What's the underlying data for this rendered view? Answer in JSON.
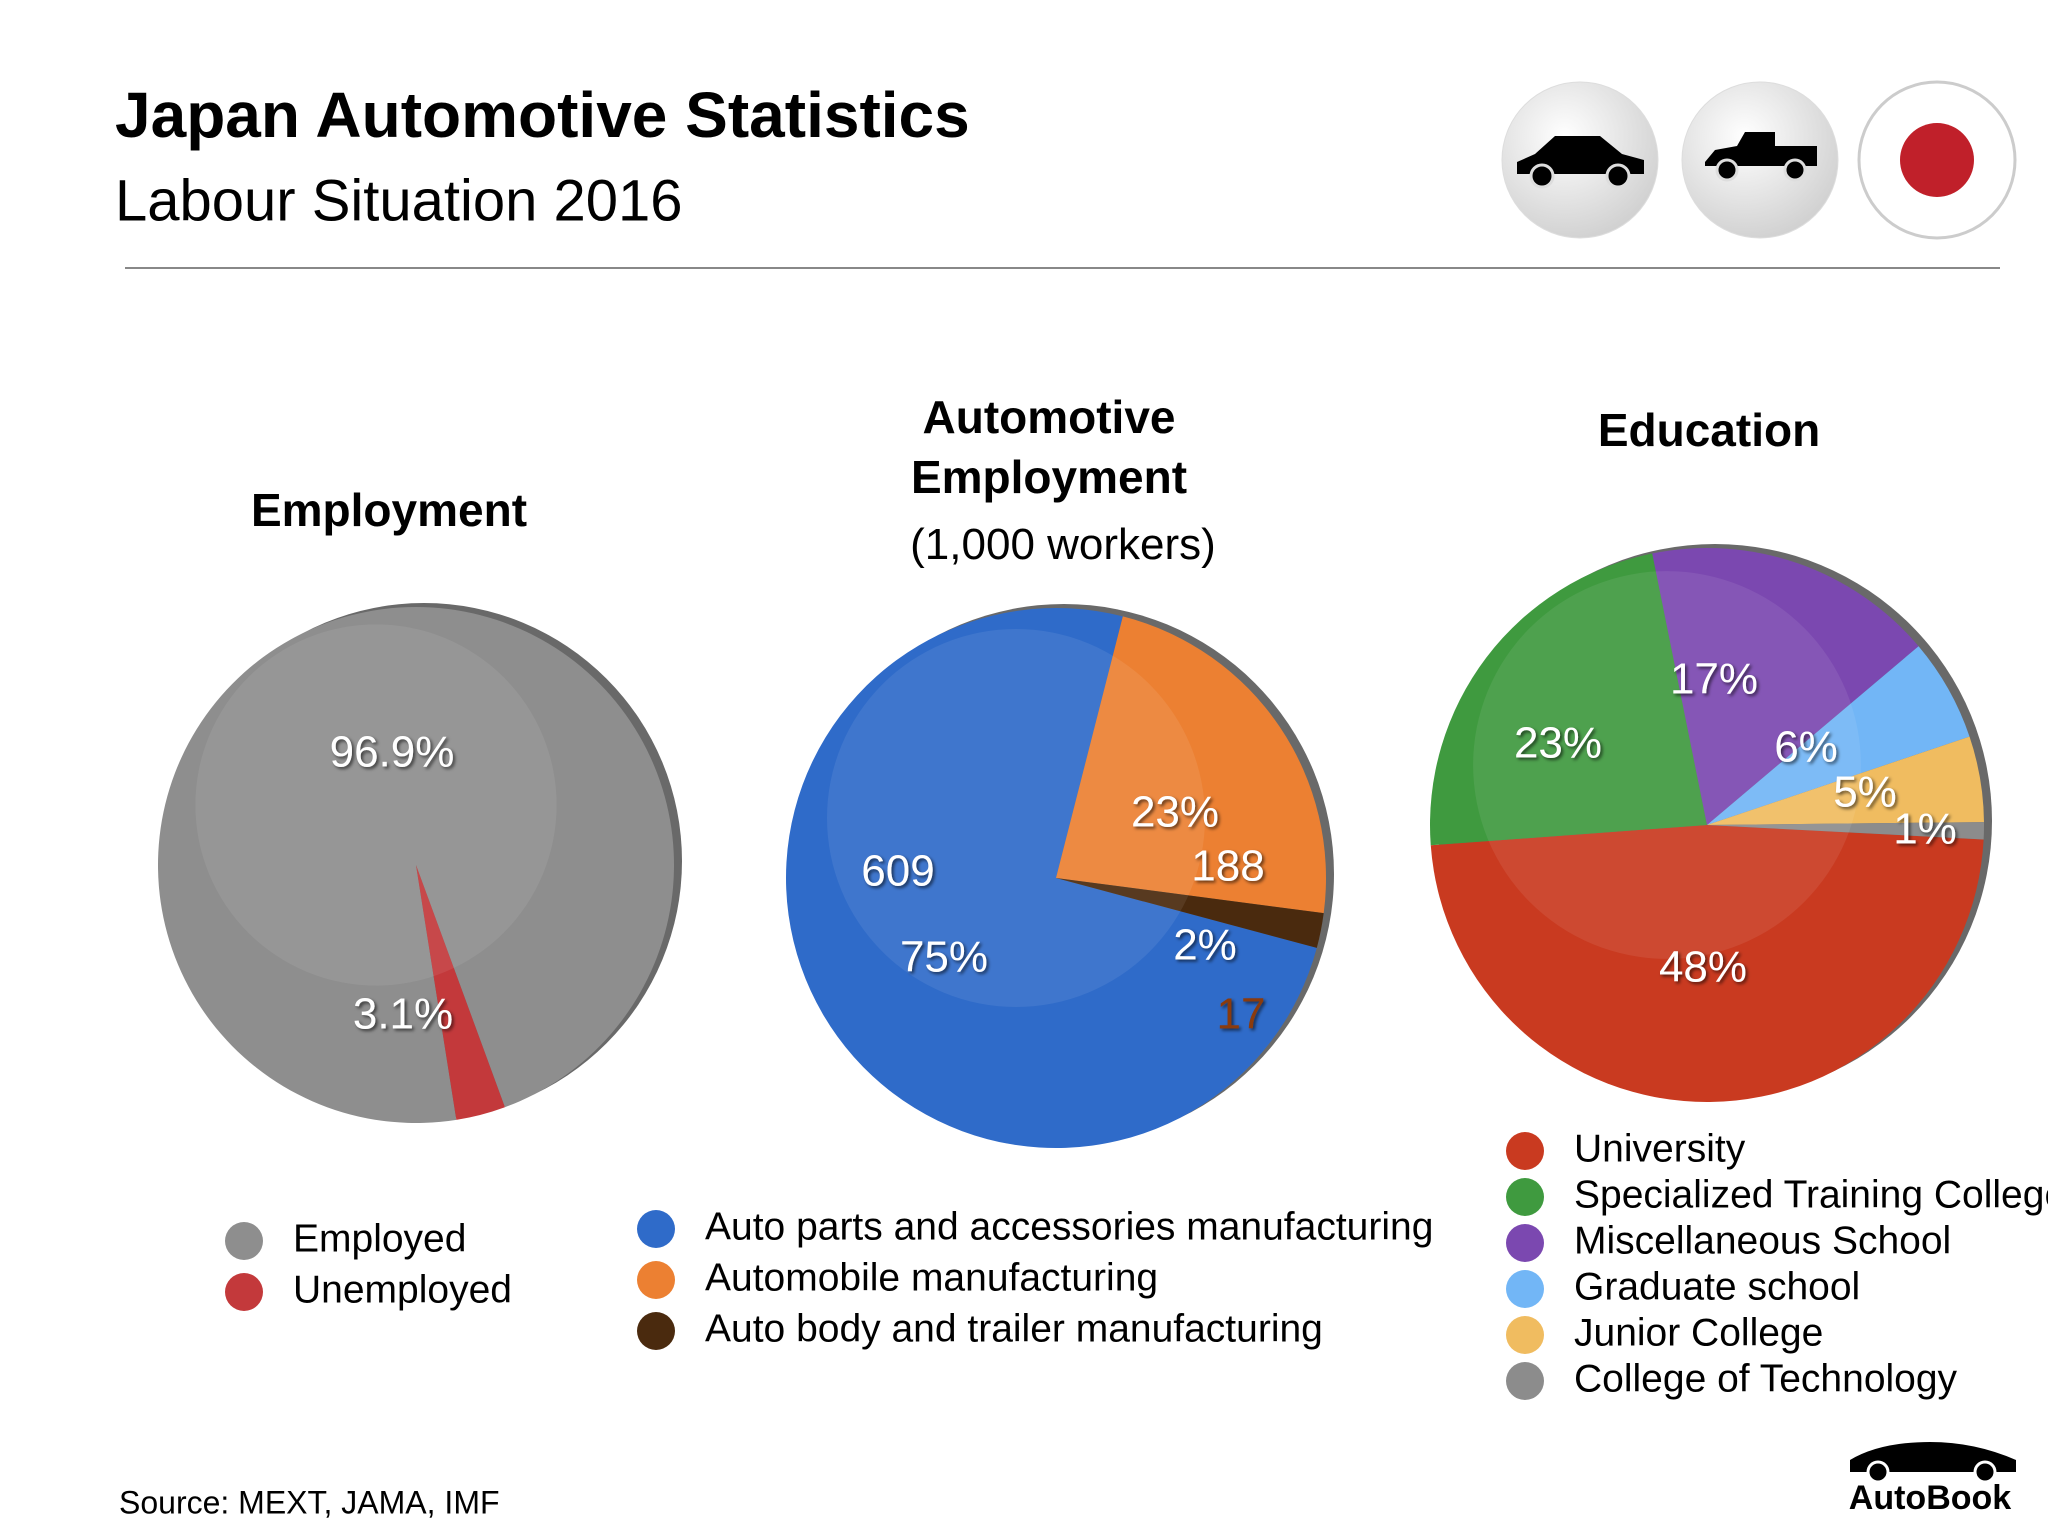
{
  "header": {
    "title": "Japan Automotive Statistics",
    "subtitle": "Labour Situation 2016"
  },
  "chart_data": [
    {
      "type": "pie",
      "title": "Employment",
      "categories": [
        "Employed",
        "Unemployed"
      ],
      "values": [
        96.9,
        3.1
      ],
      "value_labels": [
        "96.9%",
        "3.1%"
      ],
      "colors": [
        "#8e8e8e",
        "#c3393b"
      ]
    },
    {
      "type": "pie",
      "title": "Automotive Employment",
      "subtitle": "(1,000 workers)",
      "categories": [
        "Auto parts and accessories manufacturing",
        "Automobile manufacturing",
        "Auto body and trailer manufacturing"
      ],
      "values": [
        609,
        188,
        17
      ],
      "percent_labels": [
        "75%",
        "23%",
        "2%"
      ],
      "colors": [
        "#2f6bc9",
        "#ec8032",
        "#4a2a0e"
      ]
    },
    {
      "type": "pie",
      "title": "Education",
      "categories": [
        "University",
        "Specialized Training College",
        "Miscellaneous School",
        "Graduate school",
        "Junior College",
        "College of Technology"
      ],
      "values": [
        48,
        23,
        17,
        6,
        5,
        1
      ],
      "value_labels": [
        "48%",
        "23%",
        "17%",
        "6%",
        "5%",
        "1%"
      ],
      "colors": [
        "#c93a20",
        "#3f9a3f",
        "#7b48b0",
        "#72b6f6",
        "#f0bc60",
        "#8c8c8c"
      ]
    }
  ],
  "source": "Source:  MEXT, JAMA, IMF",
  "brand": "AutoBook"
}
